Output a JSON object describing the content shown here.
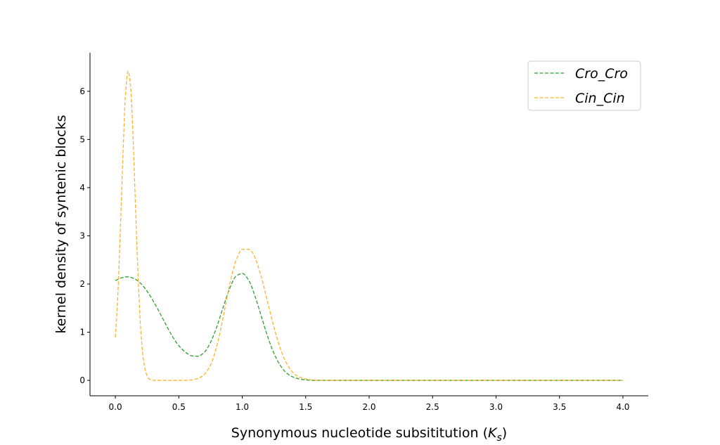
{
  "chart_data": {
    "type": "line",
    "title": "",
    "xlabel": "Synonymous nucleotide subsititution (",
    "xlabel_symbol": "K",
    "xlabel_subscript": "s",
    "xlabel_close": ")",
    "ylabel": "kernel density of syntenic blocks",
    "xlim": [
      -0.2,
      4.2
    ],
    "ylim": [
      -0.32,
      6.8
    ],
    "xticks": [
      0.0,
      0.5,
      1.0,
      1.5,
      2.0,
      2.5,
      3.0,
      3.5,
      4.0
    ],
    "xtick_labels": [
      "0.0",
      "0.5",
      "1.0",
      "1.5",
      "2.0",
      "2.5",
      "3.0",
      "3.5",
      "4.0"
    ],
    "yticks": [
      0,
      1,
      2,
      3,
      4,
      5,
      6
    ],
    "ytick_labels": [
      "0",
      "1",
      "2",
      "3",
      "4",
      "5",
      "6"
    ],
    "grid": false,
    "legend_position": "top-right",
    "series": [
      {
        "name": "Cro_Cro",
        "color": "#2ca02c",
        "linestyle": "dashed",
        "x": [
          0.0,
          0.05,
          0.1,
          0.15,
          0.2,
          0.25,
          0.3,
          0.35,
          0.4,
          0.45,
          0.5,
          0.55,
          0.6,
          0.65,
          0.7,
          0.75,
          0.8,
          0.85,
          0.9,
          0.95,
          1.0,
          1.05,
          1.1,
          1.15,
          1.2,
          1.25,
          1.3,
          1.35,
          1.4,
          1.45,
          1.5,
          1.55,
          1.6,
          1.8,
          2.0,
          2.5,
          3.0,
          3.5,
          4.0
        ],
        "y": [
          2.07,
          2.13,
          2.15,
          2.11,
          2.01,
          1.85,
          1.64,
          1.4,
          1.15,
          0.91,
          0.72,
          0.59,
          0.51,
          0.5,
          0.58,
          0.79,
          1.12,
          1.52,
          1.9,
          2.16,
          2.22,
          2.08,
          1.75,
          1.33,
          0.91,
          0.56,
          0.31,
          0.15,
          0.07,
          0.03,
          0.01,
          0.0,
          0.0,
          0.0,
          0.0,
          0.0,
          0.0,
          0.0,
          0.0
        ]
      },
      {
        "name": "Cin_Cin",
        "color": "#ffb22e",
        "linestyle": "dashed",
        "x": [
          0.0,
          0.02,
          0.04,
          0.06,
          0.08,
          0.1,
          0.12,
          0.14,
          0.16,
          0.18,
          0.2,
          0.22,
          0.24,
          0.26,
          0.28,
          0.3,
          0.35,
          0.4,
          0.5,
          0.55,
          0.6,
          0.65,
          0.7,
          0.75,
          0.8,
          0.85,
          0.9,
          0.95,
          1.0,
          1.05,
          1.08,
          1.1,
          1.15,
          1.2,
          1.25,
          1.3,
          1.35,
          1.4,
          1.45,
          1.5,
          1.6,
          1.8,
          2.0,
          2.5,
          3.0,
          3.5,
          4.0
        ],
        "y": [
          0.89,
          1.8,
          3.2,
          4.7,
          5.95,
          6.42,
          6.1,
          5.0,
          3.5,
          2.1,
          1.05,
          0.45,
          0.17,
          0.05,
          0.01,
          0.0,
          0.0,
          0.0,
          0.0,
          0.0,
          0.01,
          0.04,
          0.12,
          0.32,
          0.72,
          1.32,
          1.98,
          2.48,
          2.72,
          2.72,
          2.66,
          2.55,
          2.15,
          1.62,
          1.1,
          0.66,
          0.35,
          0.16,
          0.07,
          0.03,
          0.0,
          0.0,
          0.0,
          0.0,
          0.0,
          0.0,
          0.0
        ]
      }
    ]
  }
}
